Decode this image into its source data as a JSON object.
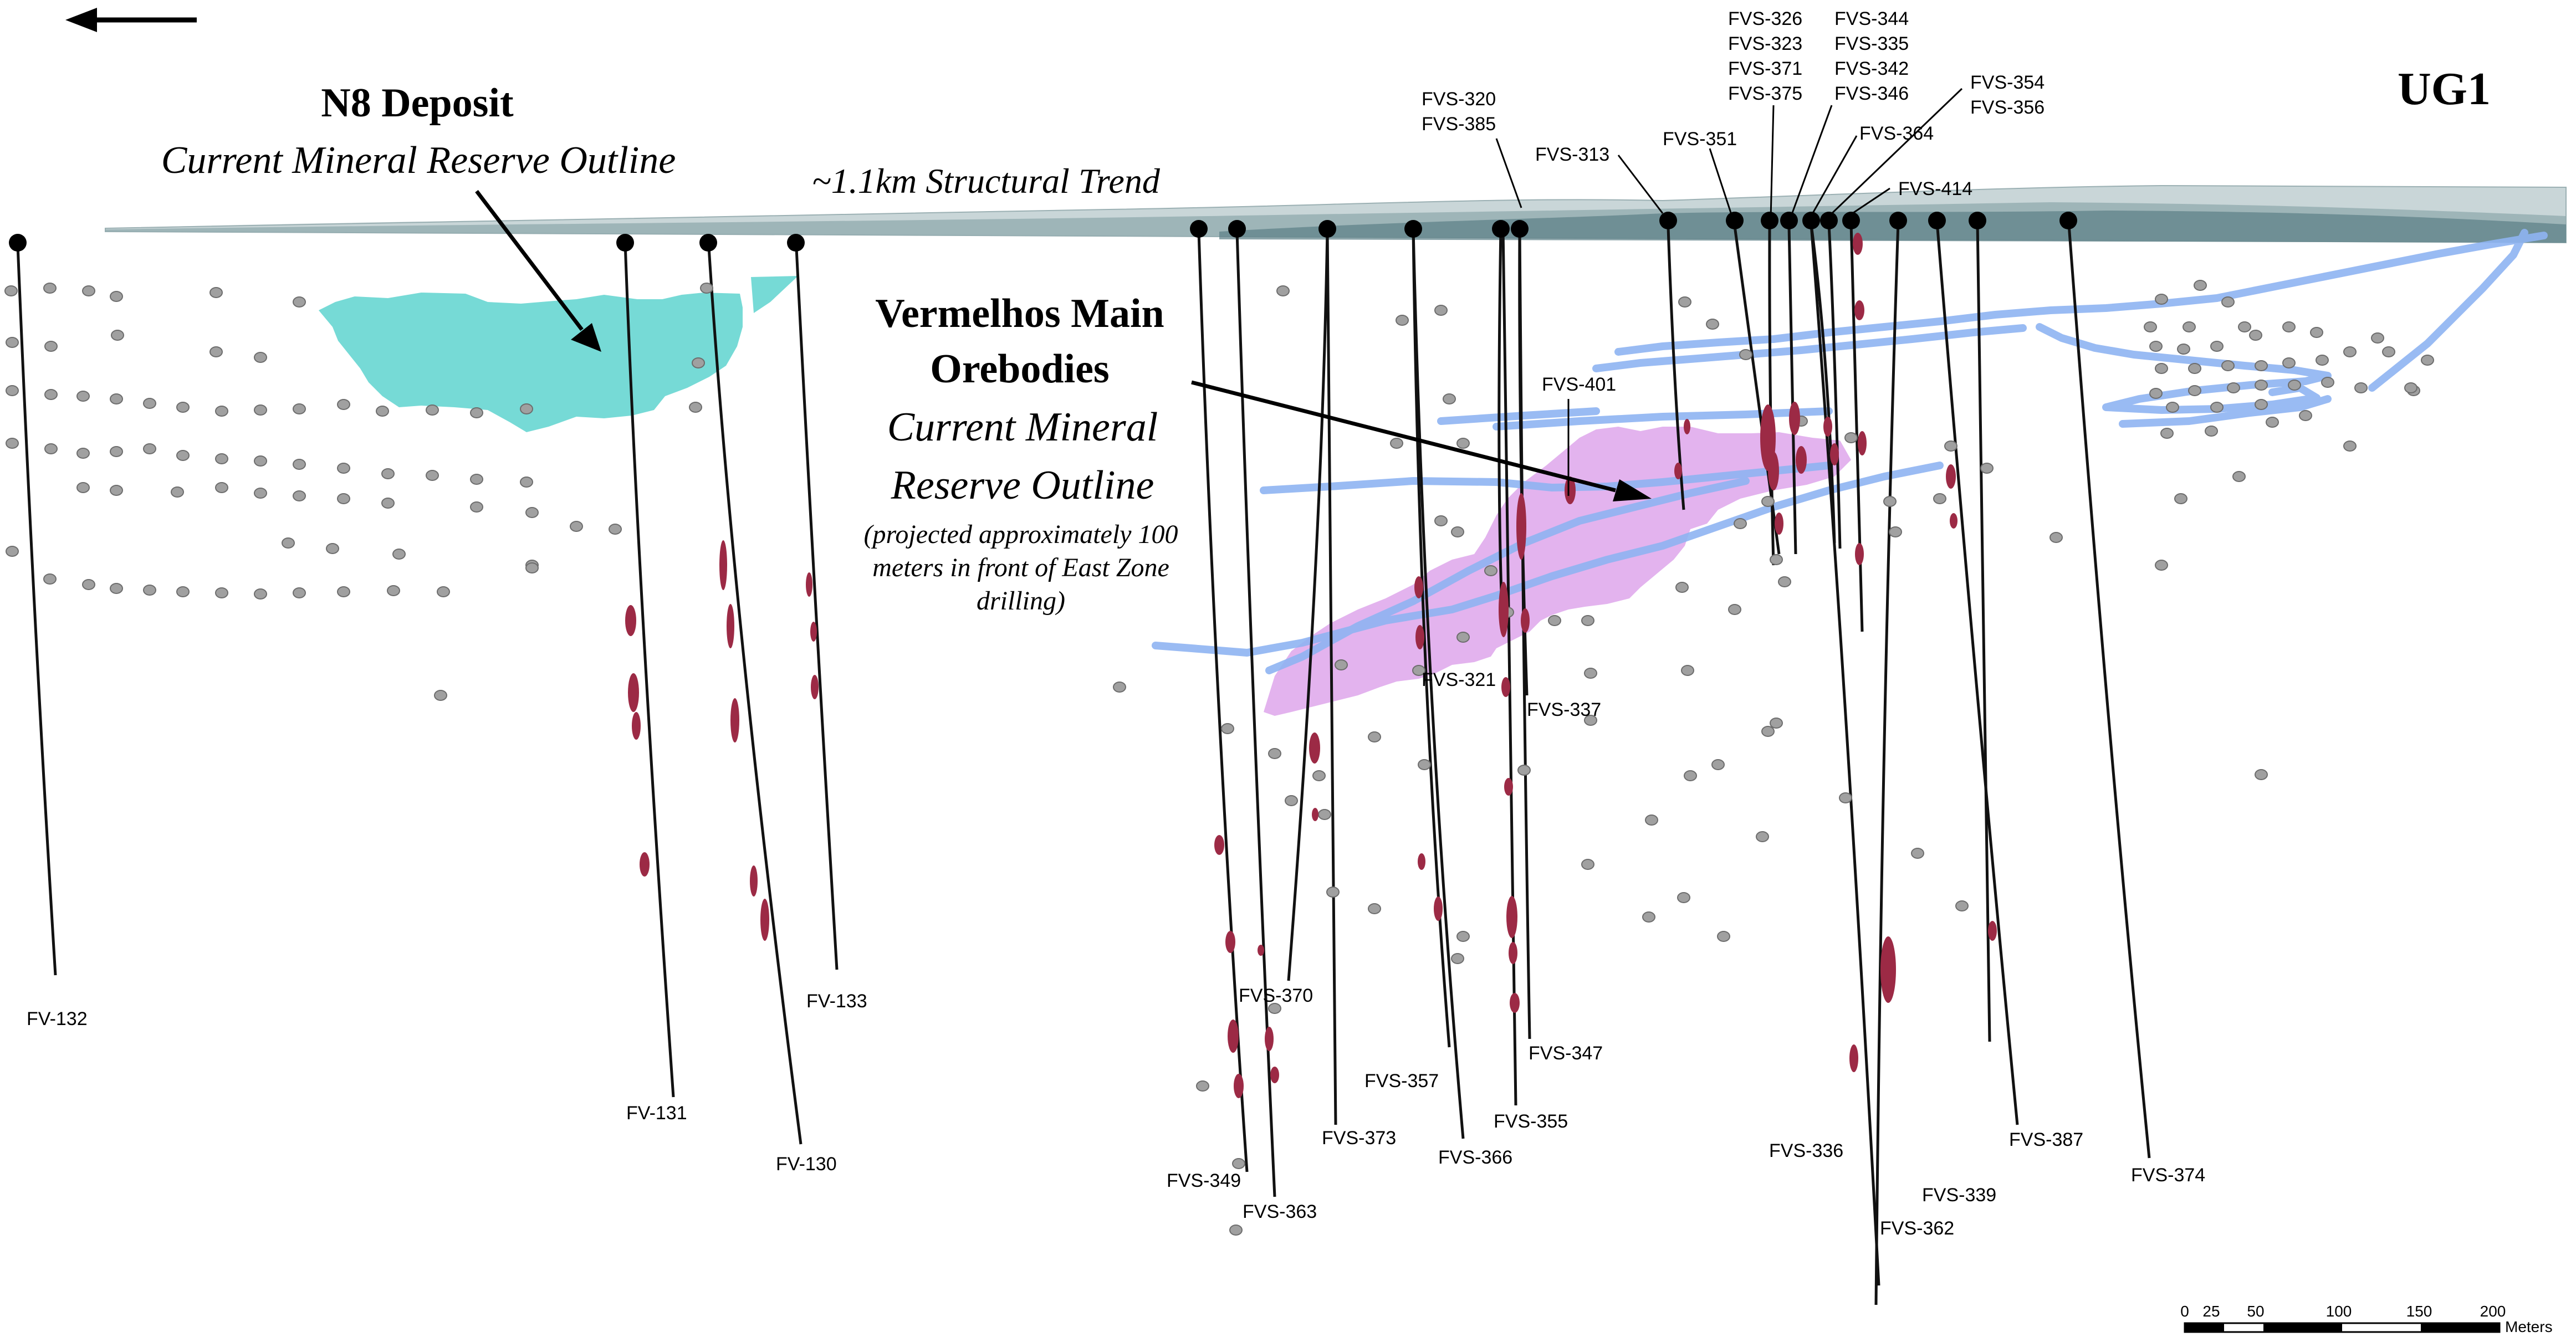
{
  "labels": {
    "n8_title": "N8 Deposit",
    "n8_subtitle": "Current Mineral Reserve Outline",
    "trend": "~1.1km Structural Trend",
    "ug1": "UG1",
    "vermelhos_line1": "Vermelhos Main",
    "vermelhos_line2": "Orebodies",
    "reserve_line1": "Current Mineral",
    "reserve_line2": "Reserve Outline",
    "proj_line1": "(projected approximately 100",
    "proj_line2": "meters in front of East Zone",
    "proj_line3": "drilling)"
  },
  "holes": [
    {
      "id": "FV-132"
    },
    {
      "id": "FV-131"
    },
    {
      "id": "FV-130"
    },
    {
      "id": "FV-133"
    },
    {
      "id": "FVS-349"
    },
    {
      "id": "FVS-363"
    },
    {
      "id": "FVS-370"
    },
    {
      "id": "FVS-373"
    },
    {
      "id": "FVS-357"
    },
    {
      "id": "FVS-366"
    },
    {
      "id": "FVS-321"
    },
    {
      "id": "FVS-355"
    },
    {
      "id": "FVS-337"
    },
    {
      "id": "FVS-347"
    },
    {
      "id": "FVS-320"
    },
    {
      "id": "FVS-385"
    },
    {
      "id": "FVS-313"
    },
    {
      "id": "FVS-401"
    },
    {
      "id": "FVS-351"
    },
    {
      "id": "FVS-326"
    },
    {
      "id": "FVS-323"
    },
    {
      "id": "FVS-371"
    },
    {
      "id": "FVS-375"
    },
    {
      "id": "FVS-344"
    },
    {
      "id": "FVS-335"
    },
    {
      "id": "FVS-342"
    },
    {
      "id": "FVS-346"
    },
    {
      "id": "FVS-364"
    },
    {
      "id": "FVS-354"
    },
    {
      "id": "FVS-356"
    },
    {
      "id": "FVS-414"
    },
    {
      "id": "FVS-336"
    },
    {
      "id": "FVS-362"
    },
    {
      "id": "FVS-339"
    },
    {
      "id": "FVS-387"
    },
    {
      "id": "FVS-374"
    }
  ],
  "scale_bar": {
    "ticks": [
      "0",
      "25",
      "50",
      "100",
      "150",
      "200"
    ],
    "unit": "Meters"
  },
  "colors": {
    "n8_reserve": "#5ed3cf",
    "vermelhos_reserve": "#dca0ea",
    "structural_trend": "#8fb4f2",
    "intercept": "#9c2a45",
    "surface": "#5b7f86",
    "drill_trace": "#111111",
    "pierce_point": "#a0a0a0"
  }
}
